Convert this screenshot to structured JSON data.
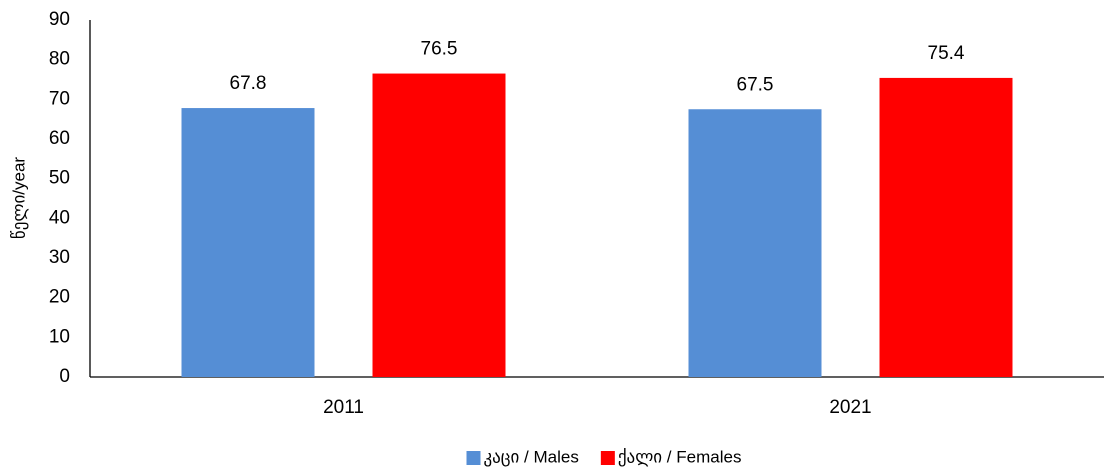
{
  "chart_data": {
    "type": "bar",
    "y_label": "წელი/year",
    "categories": [
      "2011",
      "2021"
    ],
    "series": [
      {
        "name": "კაცი / Males",
        "color": "#558ed5",
        "values": [
          67.8,
          67.5
        ]
      },
      {
        "name": "ქალი / Females",
        "color": "#ff0000",
        "values": [
          76.5,
          75.4
        ]
      }
    ],
    "ylim": [
      0,
      90
    ],
    "yticks": [
      0,
      10,
      20,
      30,
      40,
      50,
      60,
      70,
      80,
      90
    ],
    "grid": false,
    "legend": "bottom"
  }
}
